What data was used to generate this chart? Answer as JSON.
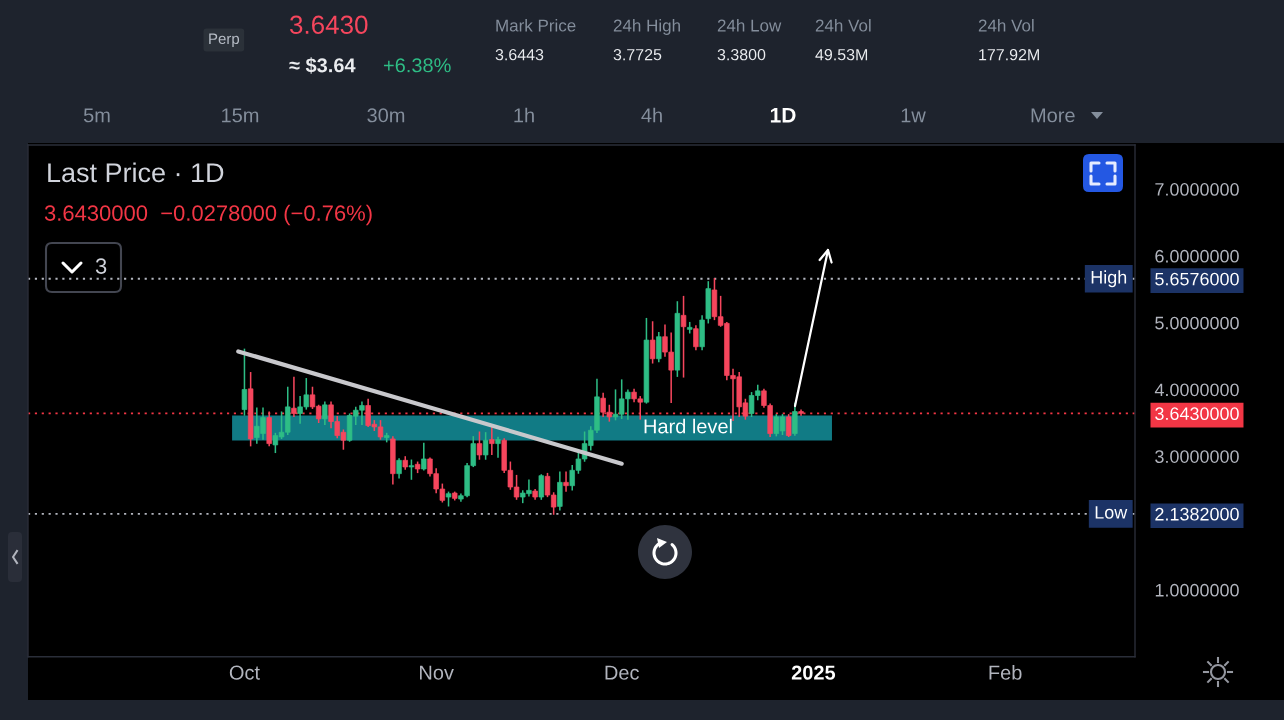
{
  "chart_data": {
    "type": "candlestick",
    "title": "Last Price · 1D",
    "subtitle": "3.6430000  −0.0278000 (−0.76%)",
    "x": [
      "2024-10-01",
      "2024-10-02",
      "2024-10-03",
      "2024-10-04",
      "2024-10-05",
      "2024-10-06",
      "2024-10-07",
      "2024-10-08",
      "2024-10-09",
      "2024-10-10",
      "2024-10-11",
      "2024-10-12",
      "2024-10-13",
      "2024-10-14",
      "2024-10-15",
      "2024-10-16",
      "2024-10-17",
      "2024-10-18",
      "2024-10-19",
      "2024-10-20",
      "2024-10-21",
      "2024-10-22",
      "2024-10-23",
      "2024-10-24",
      "2024-10-25",
      "2024-10-26",
      "2024-10-27",
      "2024-10-28",
      "2024-10-29",
      "2024-10-30",
      "2024-10-31",
      "2024-11-01",
      "2024-11-02",
      "2024-11-03",
      "2024-11-04",
      "2024-11-05",
      "2024-11-06",
      "2024-11-07",
      "2024-11-08",
      "2024-11-09",
      "2024-11-10",
      "2024-11-11",
      "2024-11-12",
      "2024-11-13",
      "2024-11-14",
      "2024-11-15",
      "2024-11-16",
      "2024-11-17",
      "2024-11-18",
      "2024-11-19",
      "2024-11-20",
      "2024-11-21",
      "2024-11-22",
      "2024-11-23",
      "2024-11-24",
      "2024-11-25",
      "2024-11-26",
      "2024-11-27",
      "2024-11-28",
      "2024-11-29",
      "2024-11-30",
      "2024-12-01",
      "2024-12-02",
      "2024-12-03",
      "2024-12-04",
      "2024-12-05",
      "2024-12-06",
      "2024-12-07",
      "2024-12-08",
      "2024-12-09",
      "2024-12-10",
      "2024-12-11",
      "2024-12-12",
      "2024-12-13",
      "2024-12-14",
      "2024-12-15",
      "2024-12-16",
      "2024-12-17",
      "2024-12-18",
      "2024-12-19",
      "2024-12-20",
      "2024-12-21",
      "2024-12-22",
      "2024-12-23",
      "2024-12-24",
      "2024-12-25",
      "2024-12-26",
      "2024-12-27",
      "2024-12-28",
      "2024-12-29",
      "2024-12-30"
    ],
    "ohlc": [
      [
        3.7,
        4.6,
        3.62,
        4.0
      ],
      [
        4.01,
        4.25,
        3.16,
        3.26
      ],
      [
        3.28,
        3.72,
        3.2,
        3.45
      ],
      [
        3.34,
        3.72,
        3.26,
        3.58
      ],
      [
        3.58,
        3.66,
        3.16,
        3.19
      ],
      [
        3.17,
        3.34,
        3.06,
        3.31
      ],
      [
        3.29,
        3.66,
        3.27,
        3.36
      ],
      [
        3.36,
        4.03,
        3.33,
        3.74
      ],
      [
        3.72,
        4.18,
        3.6,
        3.64
      ],
      [
        3.64,
        3.89,
        3.5,
        3.74
      ],
      [
        3.74,
        4.16,
        3.71,
        3.92
      ],
      [
        3.92,
        4.03,
        3.72,
        3.74
      ],
      [
        3.75,
        3.76,
        3.51,
        3.56
      ],
      [
        3.56,
        3.81,
        3.48,
        3.77
      ],
      [
        3.77,
        3.81,
        3.43,
        3.52
      ],
      [
        3.52,
        3.59,
        3.28,
        3.31
      ],
      [
        3.36,
        3.39,
        3.11,
        3.24
      ],
      [
        3.24,
        3.63,
        3.23,
        3.61
      ],
      [
        3.6,
        3.73,
        3.48,
        3.69
      ],
      [
        3.69,
        3.81,
        3.48,
        3.76
      ],
      [
        3.76,
        3.85,
        3.45,
        3.46
      ],
      [
        3.48,
        3.53,
        3.39,
        3.44
      ],
      [
        3.44,
        3.53,
        3.26,
        3.29
      ],
      [
        3.28,
        3.34,
        3.22,
        3.31
      ],
      [
        3.26,
        3.29,
        2.59,
        2.74
      ],
      [
        2.74,
        2.96,
        2.68,
        2.94
      ],
      [
        2.94,
        2.99,
        2.81,
        2.84
      ],
      [
        2.84,
        2.94,
        2.66,
        2.86
      ],
      [
        2.88,
        2.91,
        2.76,
        2.81
      ],
      [
        2.81,
        3.19,
        2.8,
        2.96
      ],
      [
        2.96,
        2.97,
        2.71,
        2.74
      ],
      [
        2.74,
        2.81,
        2.46,
        2.51
      ],
      [
        2.51,
        2.58,
        2.32,
        2.34
      ],
      [
        2.39,
        2.46,
        2.26,
        2.44
      ],
      [
        2.45,
        2.46,
        2.35,
        2.37
      ],
      [
        2.36,
        2.43,
        2.33,
        2.41
      ],
      [
        2.41,
        2.89,
        2.4,
        2.86
      ],
      [
        2.86,
        3.29,
        2.85,
        3.19
      ],
      [
        3.19,
        3.36,
        2.96,
        3.02
      ],
      [
        3.02,
        3.35,
        2.96,
        3.24
      ],
      [
        3.25,
        3.47,
        3.03,
        3.19
      ],
      [
        3.19,
        3.28,
        2.99,
        3.25
      ],
      [
        3.24,
        3.26,
        2.76,
        2.79
      ],
      [
        2.79,
        2.91,
        2.51,
        2.54
      ],
      [
        2.54,
        2.71,
        2.36,
        2.39
      ],
      [
        2.39,
        2.48,
        2.31,
        2.45
      ],
      [
        2.44,
        2.64,
        2.41,
        2.49
      ],
      [
        2.48,
        2.5,
        2.36,
        2.39
      ],
      [
        2.39,
        2.72,
        2.36,
        2.71
      ],
      [
        2.7,
        2.74,
        2.4,
        2.42
      ],
      [
        2.42,
        2.45,
        2.1382,
        2.24
      ],
      [
        2.25,
        2.76,
        2.2,
        2.61
      ],
      [
        2.61,
        2.76,
        2.48,
        2.56
      ],
      [
        2.56,
        2.86,
        2.5,
        2.79
      ],
      [
        2.79,
        3.06,
        2.75,
        2.96
      ],
      [
        2.96,
        3.36,
        2.93,
        3.19
      ],
      [
        3.16,
        3.44,
        3.1,
        3.39
      ],
      [
        3.39,
        4.15,
        3.36,
        3.89
      ],
      [
        3.87,
        3.94,
        3.6,
        3.66
      ],
      [
        3.66,
        3.76,
        3.53,
        3.59
      ],
      [
        3.59,
        3.99,
        3.55,
        3.63
      ],
      [
        3.63,
        4.14,
        3.57,
        3.86
      ],
      [
        3.86,
        3.99,
        3.56,
        3.96
      ],
      [
        3.96,
        4.0,
        3.82,
        3.86
      ],
      [
        3.86,
        3.89,
        3.56,
        3.81
      ],
      [
        3.81,
        5.06,
        3.8,
        4.74
      ],
      [
        4.74,
        5.01,
        4.4,
        4.46
      ],
      [
        4.46,
        4.85,
        4.42,
        4.79
      ],
      [
        4.79,
        4.96,
        4.5,
        4.56
      ],
      [
        4.56,
        4.84,
        3.81,
        4.29
      ],
      [
        4.29,
        5.31,
        4.2,
        5.14
      ],
      [
        5.11,
        5.39,
        4.19,
        4.94
      ],
      [
        4.9,
        5.0,
        4.85,
        4.93
      ],
      [
        4.91,
        4.95,
        4.6,
        4.64
      ],
      [
        4.64,
        5.1,
        4.6,
        5.04
      ],
      [
        5.06,
        5.61,
        5.0,
        5.51
      ],
      [
        5.49,
        5.6576,
        5.05,
        5.09
      ],
      [
        5.09,
        5.39,
        4.95,
        4.96
      ],
      [
        4.99,
        5.0,
        4.15,
        4.21
      ],
      [
        4.21,
        4.3,
        3.54,
        4.16
      ],
      [
        4.19,
        4.25,
        3.6,
        3.74
      ],
      [
        3.8,
        3.85,
        3.56,
        3.6
      ],
      [
        3.64,
        3.95,
        3.6,
        3.91
      ],
      [
        3.91,
        4.06,
        3.85,
        3.98
      ],
      [
        3.98,
        4.0,
        3.74,
        3.76
      ],
      [
        3.76,
        3.78,
        3.3,
        3.34
      ],
      [
        3.34,
        3.62,
        3.31,
        3.59
      ],
      [
        3.38,
        3.62,
        3.33,
        3.59
      ],
      [
        3.59,
        3.62,
        3.3,
        3.31
      ],
      [
        3.34,
        3.79,
        3.32,
        3.67
      ],
      [
        3.67,
        3.69,
        3.62,
        3.643
      ]
    ],
    "colors": [
      "#2ebd85",
      "#f6465d",
      "#2ebd85",
      "#2ebd85",
      "#f6465d",
      "#2ebd85",
      "#2ebd85",
      "#2ebd85",
      "#f6465d",
      "#2ebd85",
      "#2ebd85",
      "#f6465d",
      "#f6465d",
      "#2ebd85",
      "#f6465d",
      "#f6465d",
      "#f6465d",
      "#2ebd85",
      "#2ebd85",
      "#2ebd85",
      "#f6465d",
      "#f6465d",
      "#f6465d",
      "#2ebd85",
      "#f6465d",
      "#2ebd85",
      "#f6465d",
      "#2ebd85",
      "#f6465d",
      "#2ebd85",
      "#f6465d",
      "#f6465d",
      "#f6465d",
      "#2ebd85",
      "#f6465d",
      "#2ebd85",
      "#2ebd85",
      "#2ebd85",
      "#f6465d",
      "#2ebd85",
      "#f6465d",
      "#2ebd85",
      "#f6465d",
      "#f6465d",
      "#f6465d",
      "#2ebd85",
      "#2ebd85",
      "#f6465d",
      "#2ebd85",
      "#f6465d",
      "#f6465d",
      "#2ebd85",
      "#f6465d",
      "#2ebd85",
      "#2ebd85",
      "#2ebd85",
      "#2ebd85",
      "#2ebd85",
      "#f6465d",
      "#f6465d",
      "#2ebd85",
      "#2ebd85",
      "#2ebd85",
      "#f6465d",
      "#f6465d",
      "#2ebd85",
      "#f6465d",
      "#2ebd85",
      "#f6465d",
      "#f6465d",
      "#2ebd85",
      "#f6465d",
      "#2ebd85",
      "#f6465d",
      "#2ebd85",
      "#2ebd85",
      "#f6465d",
      "#f6465d",
      "#f6465d",
      "#f6465d",
      "#f6465d",
      "#f6465d",
      "#2ebd85",
      "#2ebd85",
      "#f6465d",
      "#f6465d",
      "#2ebd85",
      "#2ebd85",
      "#f6465d",
      "#2ebd85",
      "#f6465d"
    ],
    "series": [
      {
        "type": "line",
        "color": "#c8c8cc",
        "x": [
          "2024-09-30",
          "2024-12-01"
        ],
        "values": [
          4.57,
          2.89
        ]
      }
    ],
    "xlim": [
      "2024-08-27",
      "2025-02-22"
    ],
    "xticks": [
      {
        "value": "2024-10-01",
        "label": "Oct"
      },
      {
        "value": "2024-11-01",
        "label": "Nov"
      },
      {
        "value": "2024-12-01",
        "label": "Dec"
      },
      {
        "value": "2025-01-01",
        "label": "2025"
      },
      {
        "value": "2025-02-01",
        "label": "Feb"
      }
    ],
    "ylim": [
      0,
      7.66
    ],
    "yticks": [
      {
        "value": 1,
        "label": "1.0000000"
      },
      {
        "value": 3,
        "label": "3.0000000"
      },
      {
        "value": 4,
        "label": "4.0000000"
      },
      {
        "value": 5,
        "label": "5.0000000"
      },
      {
        "value": 6,
        "label": "6.0000000"
      },
      {
        "value": 7,
        "label": "7.0000000"
      },
      {
        "value": 5.6576,
        "label": "5.6576000"
      },
      {
        "value": 3.643,
        "label": "3.6430000"
      },
      {
        "value": 2.1382,
        "label": "2.1382000"
      }
    ],
    "ref_lines": [
      {
        "axis": "y",
        "value": 5.6576,
        "label": "High",
        "color": "#b2b5be",
        "line_style": "dotted"
      },
      {
        "axis": "y",
        "value": 3.643,
        "color": "#f23645",
        "line_style": "dotted"
      },
      {
        "axis": "y",
        "value": 2.1382,
        "label": "Low",
        "color": "#b2b5be",
        "line_style": "dotted"
      }
    ],
    "bands": [
      {
        "axis": "y",
        "from": 3.235,
        "to": 3.61,
        "label": "Hard level",
        "color": "#138893"
      }
    ],
    "annotations": [
      "Perp",
      "3.6430",
      "≈ $3.64",
      "+6.38%",
      "Mark Price",
      "3.6443",
      "24h High",
      "3.7725",
      "24h Low",
      "3.3800",
      "24h Vol",
      "49.53M",
      "24h Vol",
      "177.92M",
      "5m",
      "15m",
      "30m",
      "1h",
      "4h",
      "1D",
      "1w",
      "More",
      "3"
    ]
  }
}
